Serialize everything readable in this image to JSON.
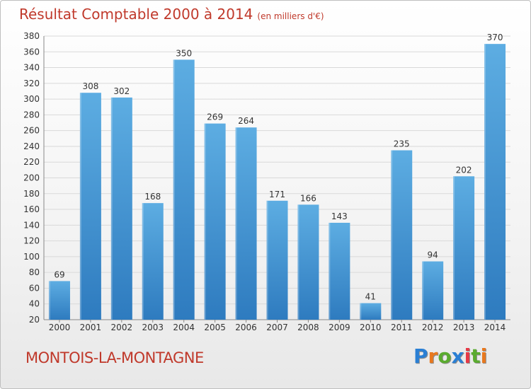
{
  "header": {
    "title": "Résultat Comptable 2000 à 2014",
    "unit": "(en milliers d'€)"
  },
  "footer": {
    "commune": "MONTOIS-LA-MONTAGNE"
  },
  "logo": {
    "letters": [
      "P",
      "r",
      "o",
      "x",
      "i",
      "t",
      "i"
    ],
    "colors": [
      "#2a7fd4",
      "#e8781e",
      "#5aab2f",
      "#2a7fd4",
      "#e63946",
      "#5aab2f",
      "#e8781e"
    ]
  },
  "colors": {
    "title": "#c0392b",
    "bar_light": "#5dade2",
    "bar_dark": "#2e7bbf",
    "grid": "#d9d9d9"
  },
  "chart_data": {
    "type": "bar",
    "title": "Résultat Comptable 2000 à 2014",
    "ylabel": "",
    "xlabel": "",
    "ylim": [
      20,
      380
    ],
    "yticks": [
      20,
      40,
      60,
      80,
      100,
      120,
      140,
      160,
      180,
      200,
      220,
      240,
      260,
      280,
      300,
      320,
      340,
      360,
      380
    ],
    "categories": [
      "2000",
      "2001",
      "2002",
      "2003",
      "2004",
      "2005",
      "2006",
      "2007",
      "2008",
      "2009",
      "2010",
      "2011",
      "2012",
      "2013",
      "2014"
    ],
    "values": [
      69,
      308,
      302,
      168,
      350,
      269,
      264,
      171,
      166,
      143,
      41,
      235,
      94,
      202,
      370
    ],
    "grid": true
  }
}
